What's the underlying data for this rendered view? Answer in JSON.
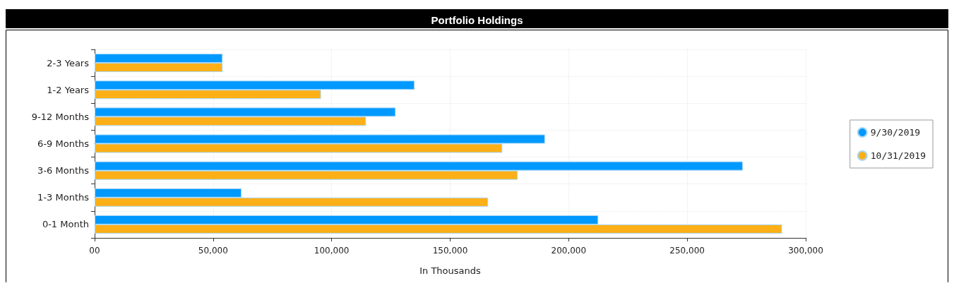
{
  "chart_data": {
    "type": "bar",
    "orientation": "horizontal",
    "title": "Portfolio Holdings",
    "xlabel": "In Thousands",
    "categories": [
      "2-3 Years",
      "1-2 Years",
      "9-12 Months",
      "6-9 Months",
      "3-6 Months",
      "1-3 Months",
      "0-1 Month"
    ],
    "series": [
      {
        "name": "9/30/2019",
        "color": "#0099ff",
        "values": [
          54000,
          135000,
          127000,
          190000,
          273500,
          62000,
          212500
        ]
      },
      {
        "name": "10/31/2019",
        "color": "#fcaf17",
        "values": [
          54000,
          95500,
          114500,
          172000,
          178500,
          166000,
          290000
        ]
      }
    ],
    "xlim": [
      0,
      300000
    ],
    "xticks": [
      {
        "value": 0,
        "label": "00"
      },
      {
        "value": 50000,
        "label": "50,000"
      },
      {
        "value": 100000,
        "label": "100,000"
      },
      {
        "value": 150000,
        "label": "150,000"
      },
      {
        "value": 200000,
        "label": "200,000"
      },
      {
        "value": 250000,
        "label": "250,000"
      },
      {
        "value": 300000,
        "label": "300,000"
      }
    ],
    "grid": true,
    "legend": "right"
  }
}
